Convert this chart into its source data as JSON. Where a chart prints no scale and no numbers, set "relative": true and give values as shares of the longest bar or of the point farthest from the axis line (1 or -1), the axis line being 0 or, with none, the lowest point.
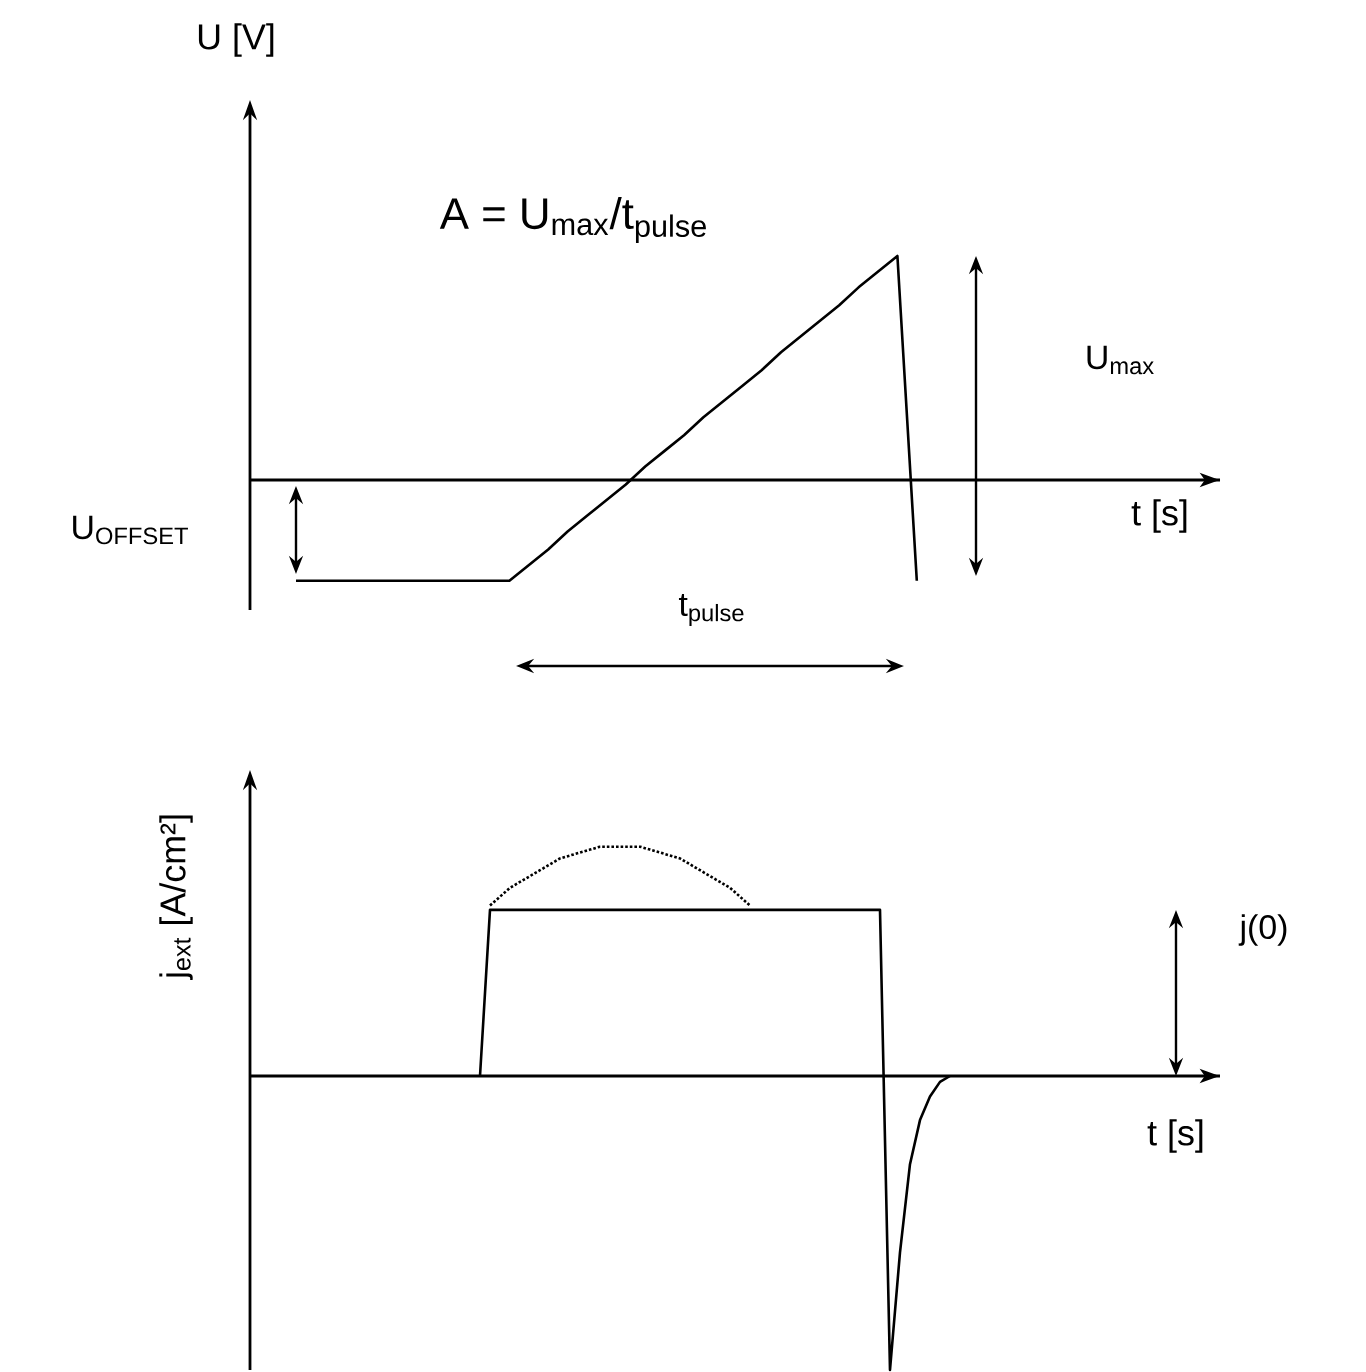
{
  "chart_data": [
    {
      "type": "line",
      "relative": true,
      "xlabel": "t [s]",
      "ylabel": "U [V]",
      "tick_labels": false,
      "marker": "none",
      "annotations": [
        "A = U$_{max}$/t$_{pulse}$",
        "U$_{max}$",
        "U$_{OFFSET}$",
        "t$_{pulse}$"
      ],
      "categories": [
        null,
        null,
        null,
        null,
        null,
        null,
        null,
        null,
        null,
        null,
        null,
        null,
        null,
        null,
        null,
        null,
        null,
        null,
        null,
        null,
        null,
        null,
        null,
        null,
        null,
        null,
        null,
        null,
        null,
        null,
        null,
        null,
        null
      ],
      "series": [
        {
          "color": "#000000",
          "line_style": "solid",
          "values": [
            -0.45,
            -0.45,
            -0.45,
            -0.45,
            -0.45,
            -0.45,
            -0.45,
            -0.45,
            -0.45,
            -0.45,
            -0.45,
            -0.45,
            -0.38,
            -0.31,
            -0.23,
            -0.16,
            -0.09,
            -0.02,
            0.06,
            0.13,
            0.2,
            0.28,
            0.35,
            0.42,
            0.49,
            0.57,
            0.64,
            0.71,
            0.78,
            0.86,
            0.93,
            1,
            -0.45
          ]
        }
      ]
    },
    {
      "type": "line",
      "relative": true,
      "xlabel": "t [s]",
      "ylabel": "j$_{ext}$ [A/cm²]",
      "tick_labels": false,
      "marker": "none",
      "annotations": [
        "j(0)"
      ],
      "categories": [
        null,
        null,
        null,
        null,
        null,
        null,
        null,
        null,
        null,
        null,
        null,
        null,
        null,
        null,
        null,
        null,
        null,
        null,
        null,
        null,
        null,
        null,
        null,
        null,
        null,
        null,
        null,
        null,
        null,
        null,
        null,
        null,
        null,
        null,
        null,
        null,
        null,
        null,
        null,
        null,
        null,
        null,
        null,
        null,
        null,
        null,
        null,
        null
      ],
      "series": [
        {
          "color": "#000000",
          "line_style": "solid",
          "values": [
            0,
            0.565,
            0.565,
            0.565,
            0.565,
            0.565,
            0.565,
            0.565,
            0.565,
            0.565,
            0.565,
            0.565,
            0.565,
            0.565,
            0.565,
            0.565,
            0.565,
            0.565,
            0.565,
            0.565,
            0.565,
            0.565,
            0.565,
            0.565,
            0.565,
            0.565,
            0.565,
            0.565,
            0.565,
            0.565,
            0.565,
            0.565,
            0.565,
            0.565,
            0.565,
            0.565,
            0.565,
            0.565,
            0.565,
            0.565,
            0.565,
            -1,
            -0.6,
            -0.3,
            -0.15,
            -0.07,
            -0.02,
            0
          ]
        },
        {
          "color": "#000000",
          "line_style": "dotted",
          "values": [
            null,
            0.58,
            0.61,
            0.64,
            0.66,
            0.68,
            0.7,
            0.72,
            0.74,
            0.75,
            0.76,
            0.77,
            0.78,
            0.78,
            0.78,
            0.78,
            0.78,
            0.77,
            0.76,
            0.75,
            0.74,
            0.72,
            0.7,
            0.68,
            0.66,
            0.64,
            0.61,
            0.58,
            null,
            null,
            null,
            null,
            null,
            null,
            null,
            null,
            null,
            null,
            null,
            null,
            null,
            null,
            null,
            null,
            null,
            null,
            null,
            null
          ]
        }
      ]
    }
  ]
}
